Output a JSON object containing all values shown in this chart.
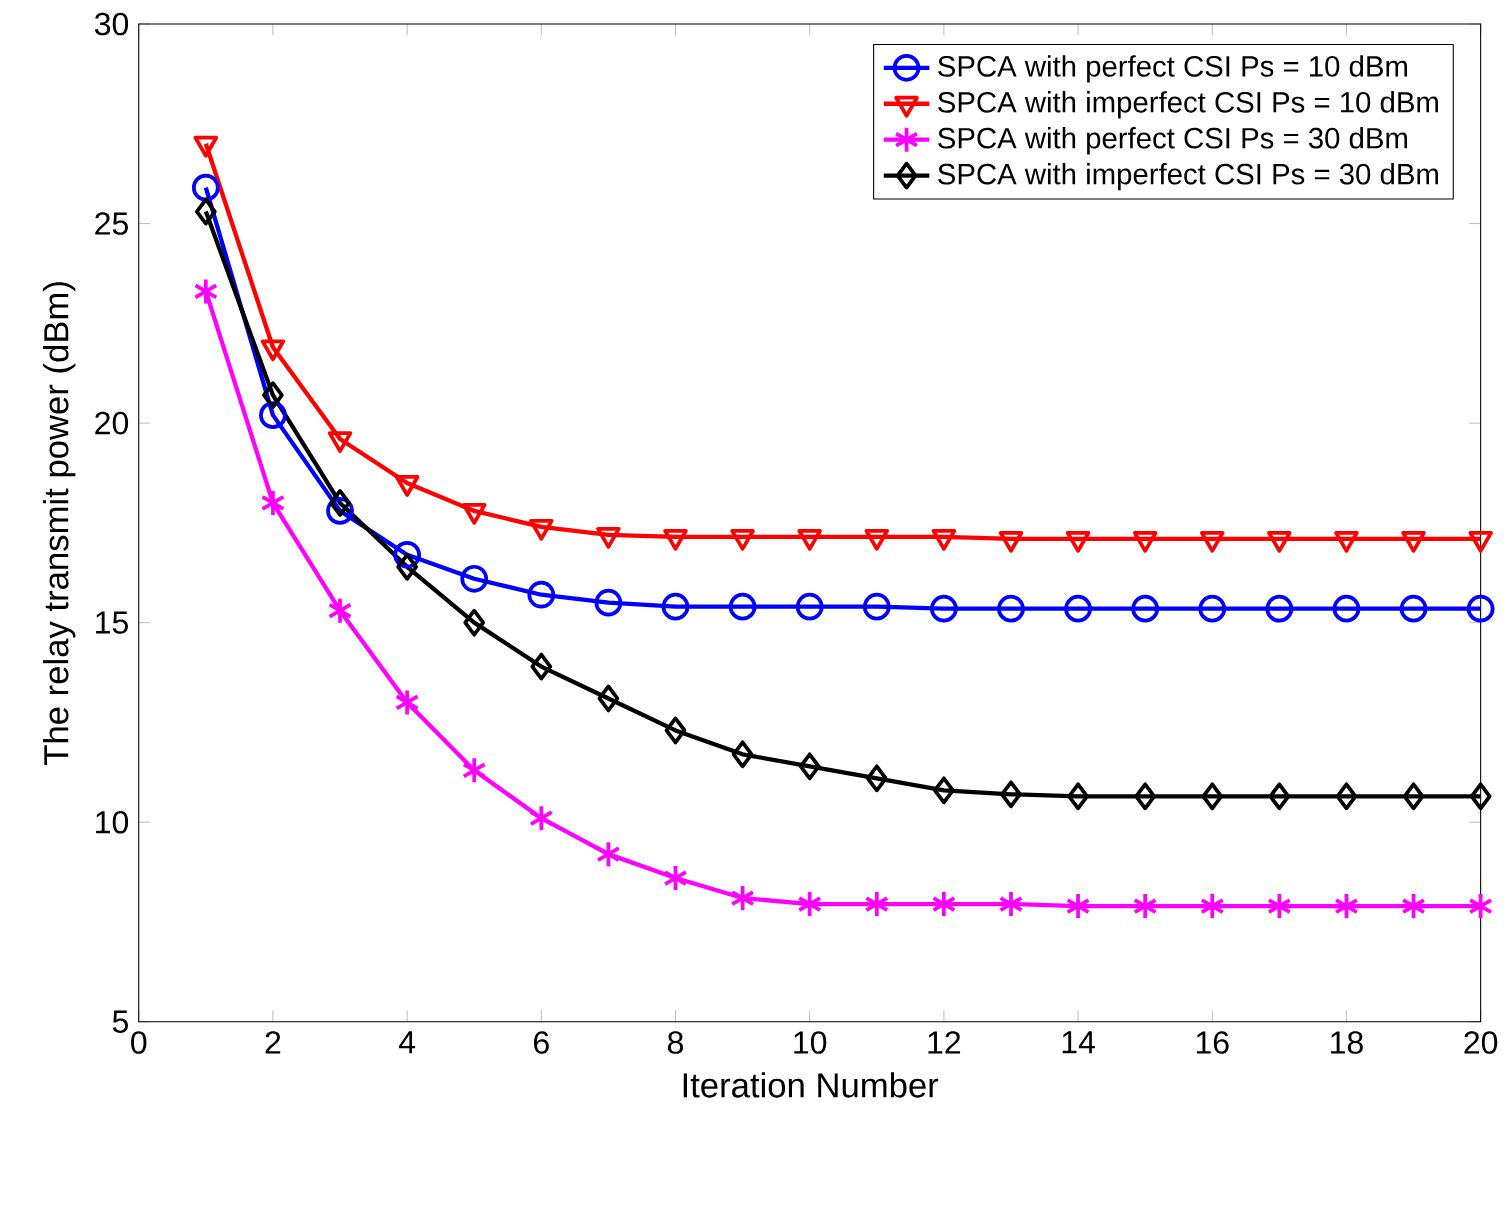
{
  "chart_data": {
    "type": "line",
    "xlabel": "Iteration Number",
    "ylabel": "The relay transmit power (dBm)",
    "x": [
      1,
      2,
      3,
      4,
      5,
      6,
      7,
      8,
      9,
      10,
      11,
      12,
      13,
      14,
      15,
      16,
      17,
      18,
      19,
      20
    ],
    "xlim": [
      0,
      20
    ],
    "xticks": [
      0,
      2,
      4,
      6,
      8,
      10,
      12,
      14,
      16,
      18,
      20
    ],
    "ylim": [
      5,
      30
    ],
    "yticks": [
      5,
      10,
      15,
      20,
      25,
      30
    ],
    "grid": false,
    "legend": "top right",
    "line_style": "solid",
    "series": [
      {
        "name": "SPCA with perfect CSI Ps = 10 dBm",
        "color": "#0000ff",
        "marker": "circle",
        "values": [
          25.9,
          20.2,
          17.8,
          16.7,
          16.1,
          15.7,
          15.5,
          15.4,
          15.4,
          15.4,
          15.4,
          15.35,
          15.35,
          15.35,
          15.35,
          15.35,
          15.35,
          15.35,
          15.35,
          15.35
        ]
      },
      {
        "name": "SPCA with imperfect CSI Ps = 10 dBm",
        "color": "#ff0000",
        "marker": "triangle",
        "values": [
          27.0,
          21.9,
          19.6,
          18.5,
          17.8,
          17.4,
          17.2,
          17.15,
          17.15,
          17.15,
          17.15,
          17.15,
          17.1,
          17.1,
          17.1,
          17.1,
          17.1,
          17.1,
          17.1,
          17.1
        ]
      },
      {
        "name": "SPCA with perfect CSI Ps = 30 dBm",
        "color": "#ff00ff",
        "marker": "cross",
        "values": [
          23.3,
          18.0,
          15.3,
          13.0,
          11.3,
          10.1,
          9.2,
          8.6,
          8.1,
          7.95,
          7.95,
          7.95,
          7.95,
          7.9,
          7.9,
          7.9,
          7.9,
          7.9,
          7.9,
          7.9
        ]
      },
      {
        "name": "SPCA with imperfect CSI Ps = 30 dBm",
        "color": "#000000",
        "marker": "diamond",
        "values": [
          25.3,
          20.7,
          18.0,
          16.4,
          15.0,
          13.9,
          13.1,
          12.3,
          11.7,
          11.4,
          11.1,
          10.8,
          10.7,
          10.65,
          10.65,
          10.65,
          10.65,
          10.65,
          10.65,
          10.65
        ]
      }
    ]
  }
}
